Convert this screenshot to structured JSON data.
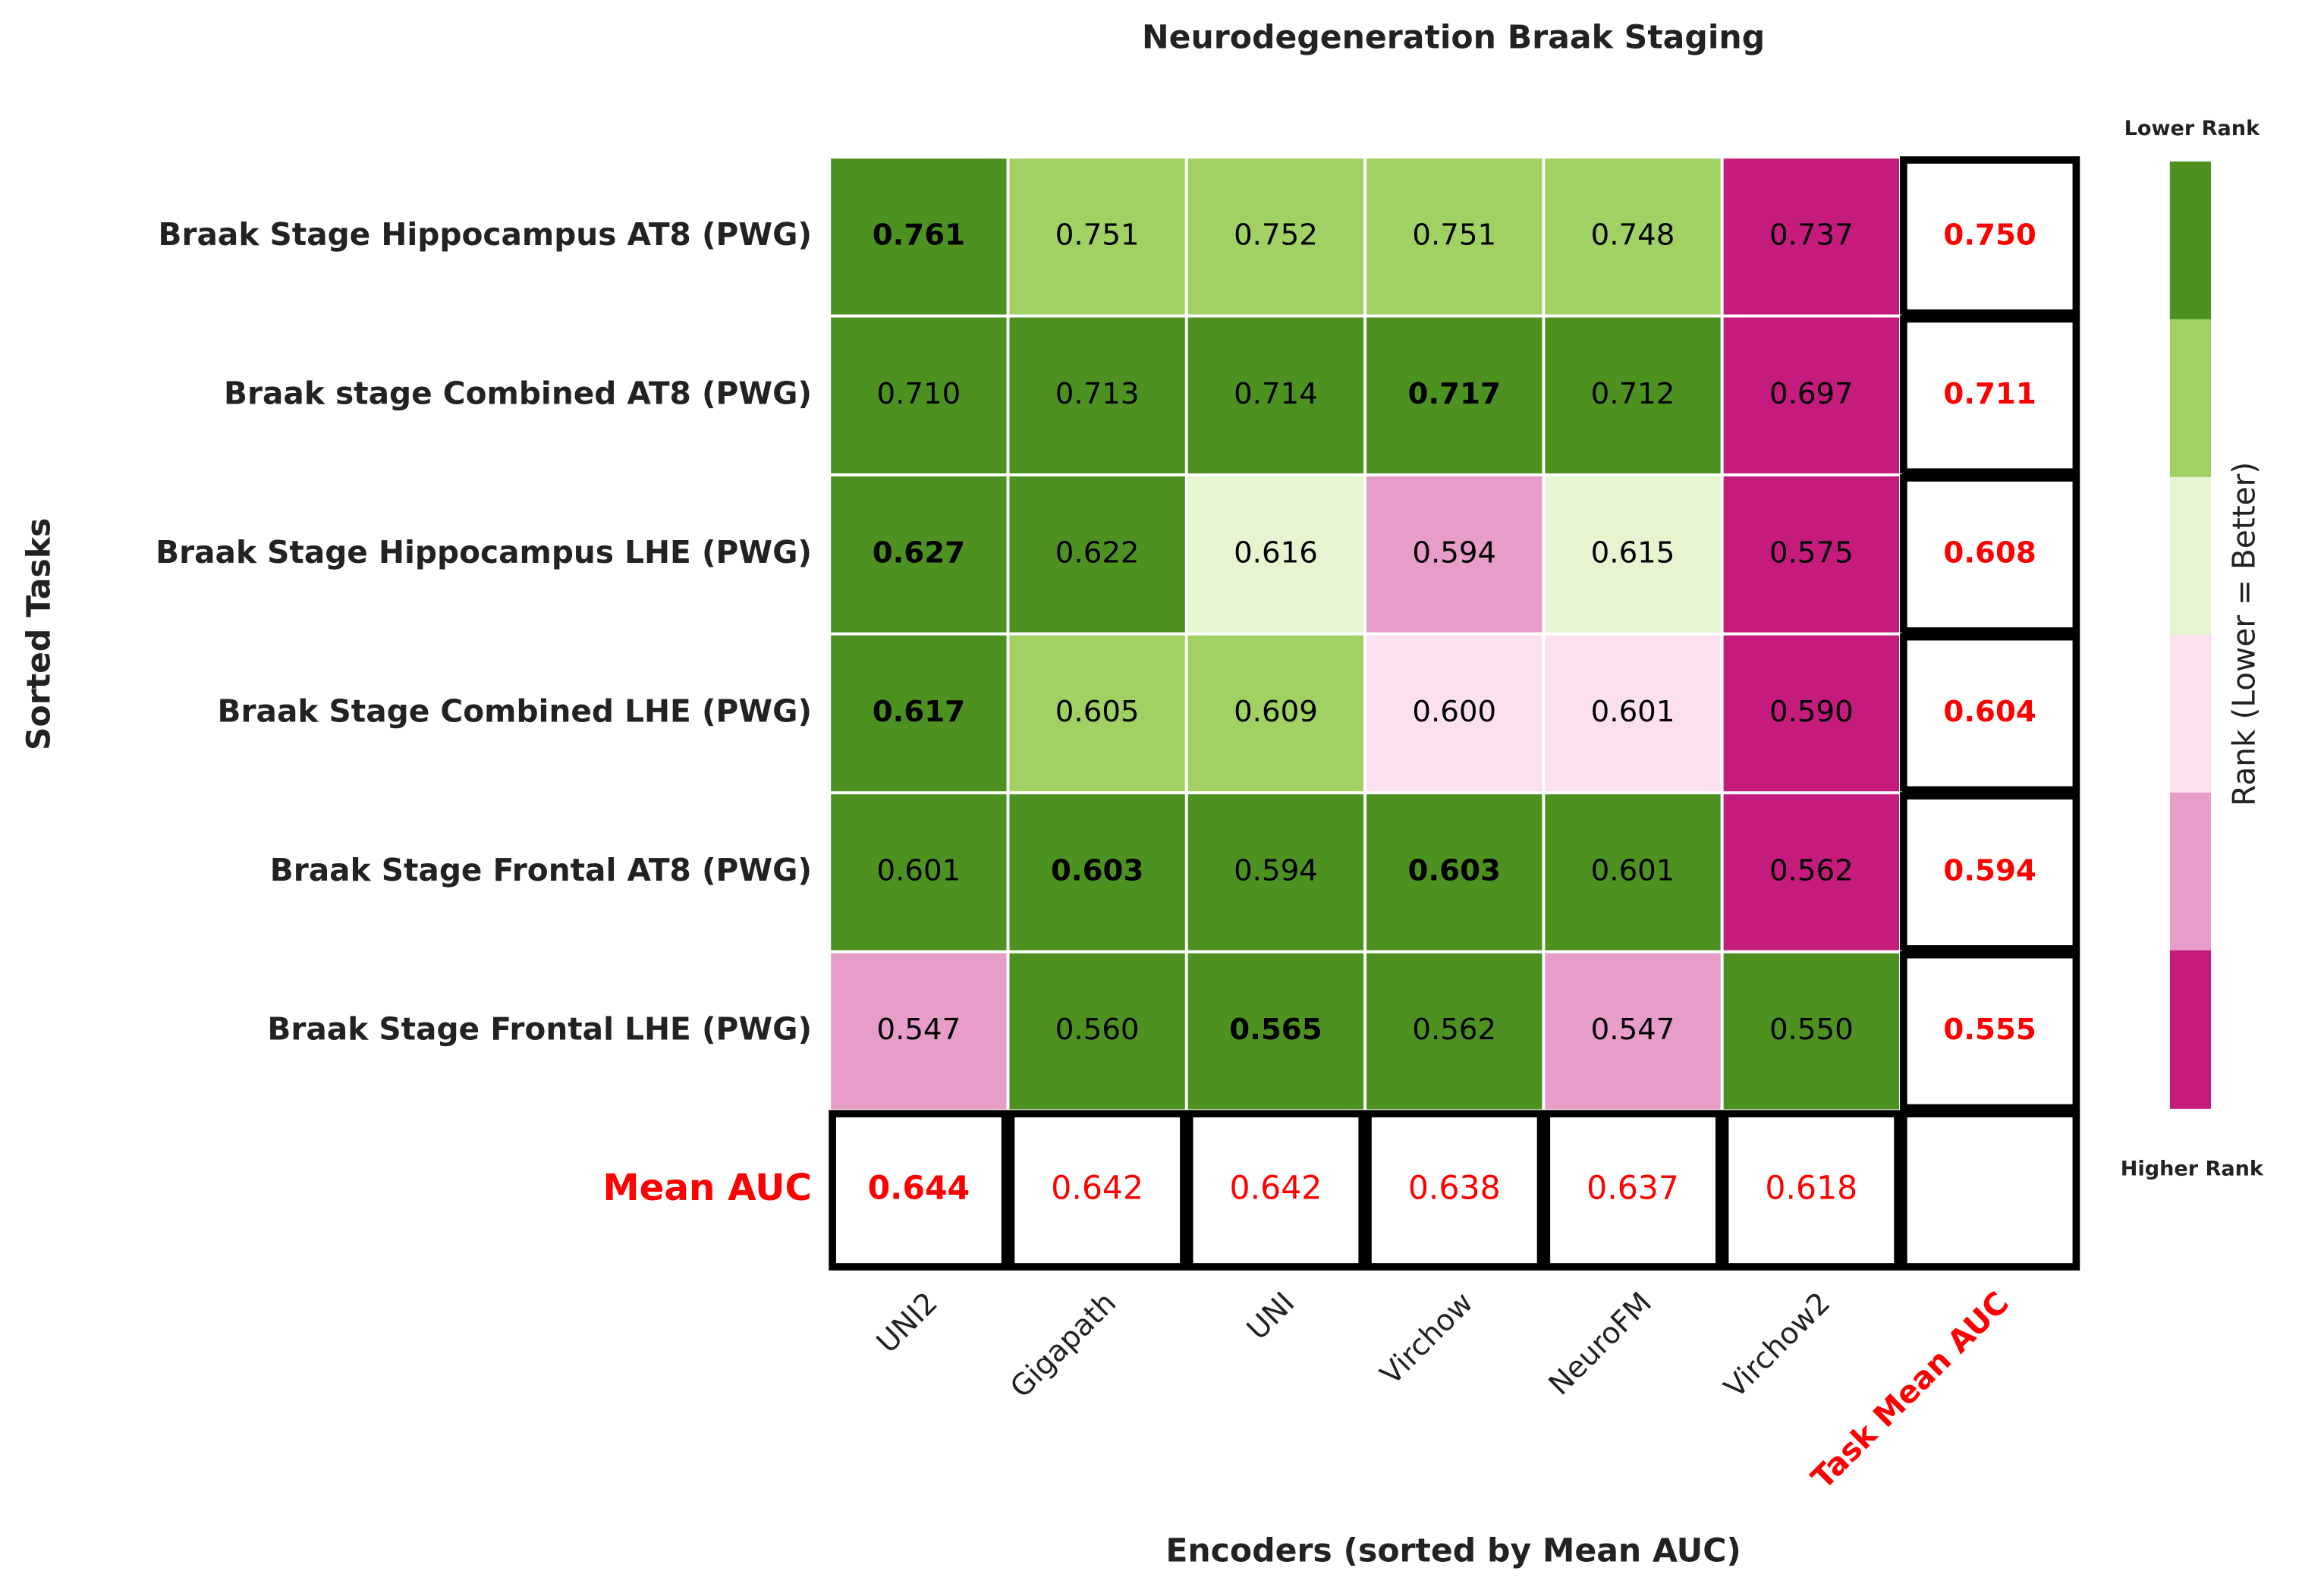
{
  "chart_data": {
    "type": "heatmap",
    "title": "Neurodegeneration Braak Staging",
    "xlabel": "Encoders (sorted by Mean AUC)",
    "ylabel": "Sorted Tasks",
    "categories": [
      "UNI2",
      "Gigapath",
      "UNI",
      "Virchow",
      "NeuroFM",
      "Virchow2"
    ],
    "rows": [
      "Braak Stage Hippocampus AT8 (PWG)",
      "Braak stage Combined AT8 (PWG)",
      "Braak Stage Hippocampus LHE (PWG)",
      "Braak Stage Combined LHE (PWG)",
      "Braak Stage Frontal AT8 (PWG)",
      "Braak Stage Frontal LHE (PWG)"
    ],
    "values": [
      [
        0.761,
        0.751,
        0.752,
        0.751,
        0.748,
        0.737
      ],
      [
        0.71,
        0.713,
        0.714,
        0.717,
        0.712,
        0.697
      ],
      [
        0.627,
        0.622,
        0.616,
        0.594,
        0.615,
        0.575
      ],
      [
        0.617,
        0.605,
        0.609,
        0.6,
        0.601,
        0.59
      ],
      [
        0.601,
        0.603,
        0.594,
        0.603,
        0.601,
        0.562
      ],
      [
        0.547,
        0.56,
        0.565,
        0.562,
        0.547,
        0.55
      ]
    ],
    "value_labels": [
      [
        "0.761",
        "0.751",
        "0.752",
        "0.751",
        "0.748",
        "0.737"
      ],
      [
        "0.710",
        "0.713",
        "0.714",
        "0.717",
        "0.712",
        "0.697"
      ],
      [
        "0.627",
        "0.622",
        "0.616",
        "0.594",
        "0.615",
        "0.575"
      ],
      [
        "0.617",
        "0.605",
        "0.609",
        "0.600",
        "0.601",
        "0.590"
      ],
      [
        "0.601",
        "0.603",
        "0.594",
        "0.603",
        "0.601",
        "0.562"
      ],
      [
        "0.547",
        "0.560",
        "0.565",
        "0.562",
        "0.547",
        "0.550"
      ]
    ],
    "cell_colors": [
      [
        "#4d9221",
        "#a1d163",
        "#a1d163",
        "#a1d163",
        "#a1d163",
        "#c51b7d"
      ],
      [
        "#4d9221",
        "#4d9221",
        "#4d9221",
        "#4d9221",
        "#4d9221",
        "#c51b7d"
      ],
      [
        "#4d9221",
        "#4d9221",
        "#e6f5d0",
        "#e89cc8",
        "#e6f5d0",
        "#c51b7d"
      ],
      [
        "#4d9221",
        "#a1d163",
        "#a1d163",
        "#fde0ef",
        "#fde0ef",
        "#c51b7d"
      ],
      [
        "#4d9221",
        "#4d9221",
        "#4d9221",
        "#4d9221",
        "#4d9221",
        "#c51b7d"
      ],
      [
        "#e89cc8",
        "#4d9221",
        "#4d9221",
        "#4d9221",
        "#e89cc8",
        "#4d9221"
      ]
    ],
    "row_mean_label": "Task Mean AUC",
    "row_means": [
      0.75,
      0.711,
      0.608,
      0.604,
      0.594,
      0.555
    ],
    "row_mean_labels": [
      "0.750",
      "0.711",
      "0.608",
      "0.604",
      "0.594",
      "0.555"
    ],
    "column_mean_label": "Mean AUC",
    "column_means": [
      0.644,
      0.642,
      0.642,
      0.638,
      0.637,
      0.618
    ],
    "column_mean_labels": [
      "0.644",
      "0.642",
      "0.642",
      "0.638",
      "0.637",
      "0.618"
    ],
    "colorbar_label": "Rank (Lower = Better)",
    "colorbar_top_label": "Lower Rank",
    "colorbar_bottom_label": "Higher Rank",
    "colorbar_colors": [
      "#4d9221",
      "#a1d163",
      "#e6f5d0",
      "#fde0ef",
      "#e89cc8",
      "#c51b7d"
    ]
  }
}
